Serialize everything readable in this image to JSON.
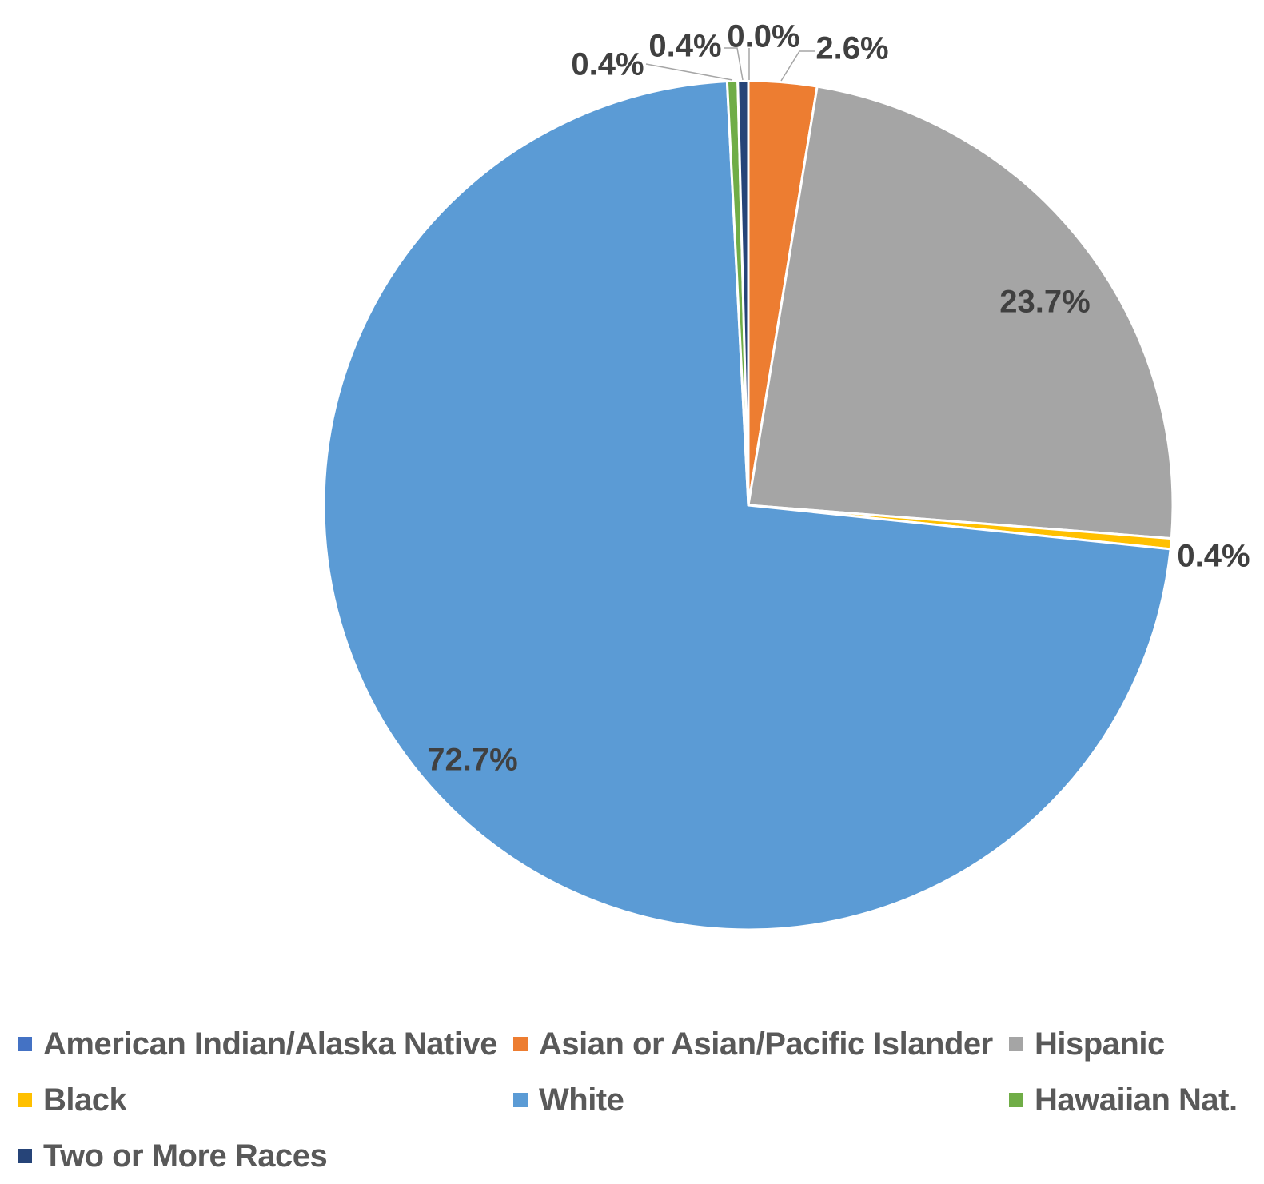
{
  "chart_data": {
    "type": "pie",
    "title": "",
    "start_angle_deg": 0,
    "direction": "clockwise",
    "legend_position": "bottom",
    "slices": [
      {
        "name": "American Indian/Alaska Native",
        "value": 0.0,
        "label": "0.0%",
        "color": "#4472C4"
      },
      {
        "name": "Asian or Asian/Pacific Islander",
        "value": 2.6,
        "label": "2.6%",
        "color": "#ED7D31"
      },
      {
        "name": "Hispanic",
        "value": 23.7,
        "label": "23.7%",
        "color": "#A5A5A5"
      },
      {
        "name": "Black",
        "value": 0.4,
        "label": "0.4%",
        "color": "#FFC000"
      },
      {
        "name": "White",
        "value": 72.7,
        "label": "72.7%",
        "color": "#5B9BD5"
      },
      {
        "name": "Hawaiian Nat.",
        "value": 0.4,
        "label": "0.4%",
        "color": "#70AD47"
      },
      {
        "name": "Two or More Races",
        "value": 0.4,
        "label": "0.4%",
        "color": "#264478"
      }
    ]
  }
}
